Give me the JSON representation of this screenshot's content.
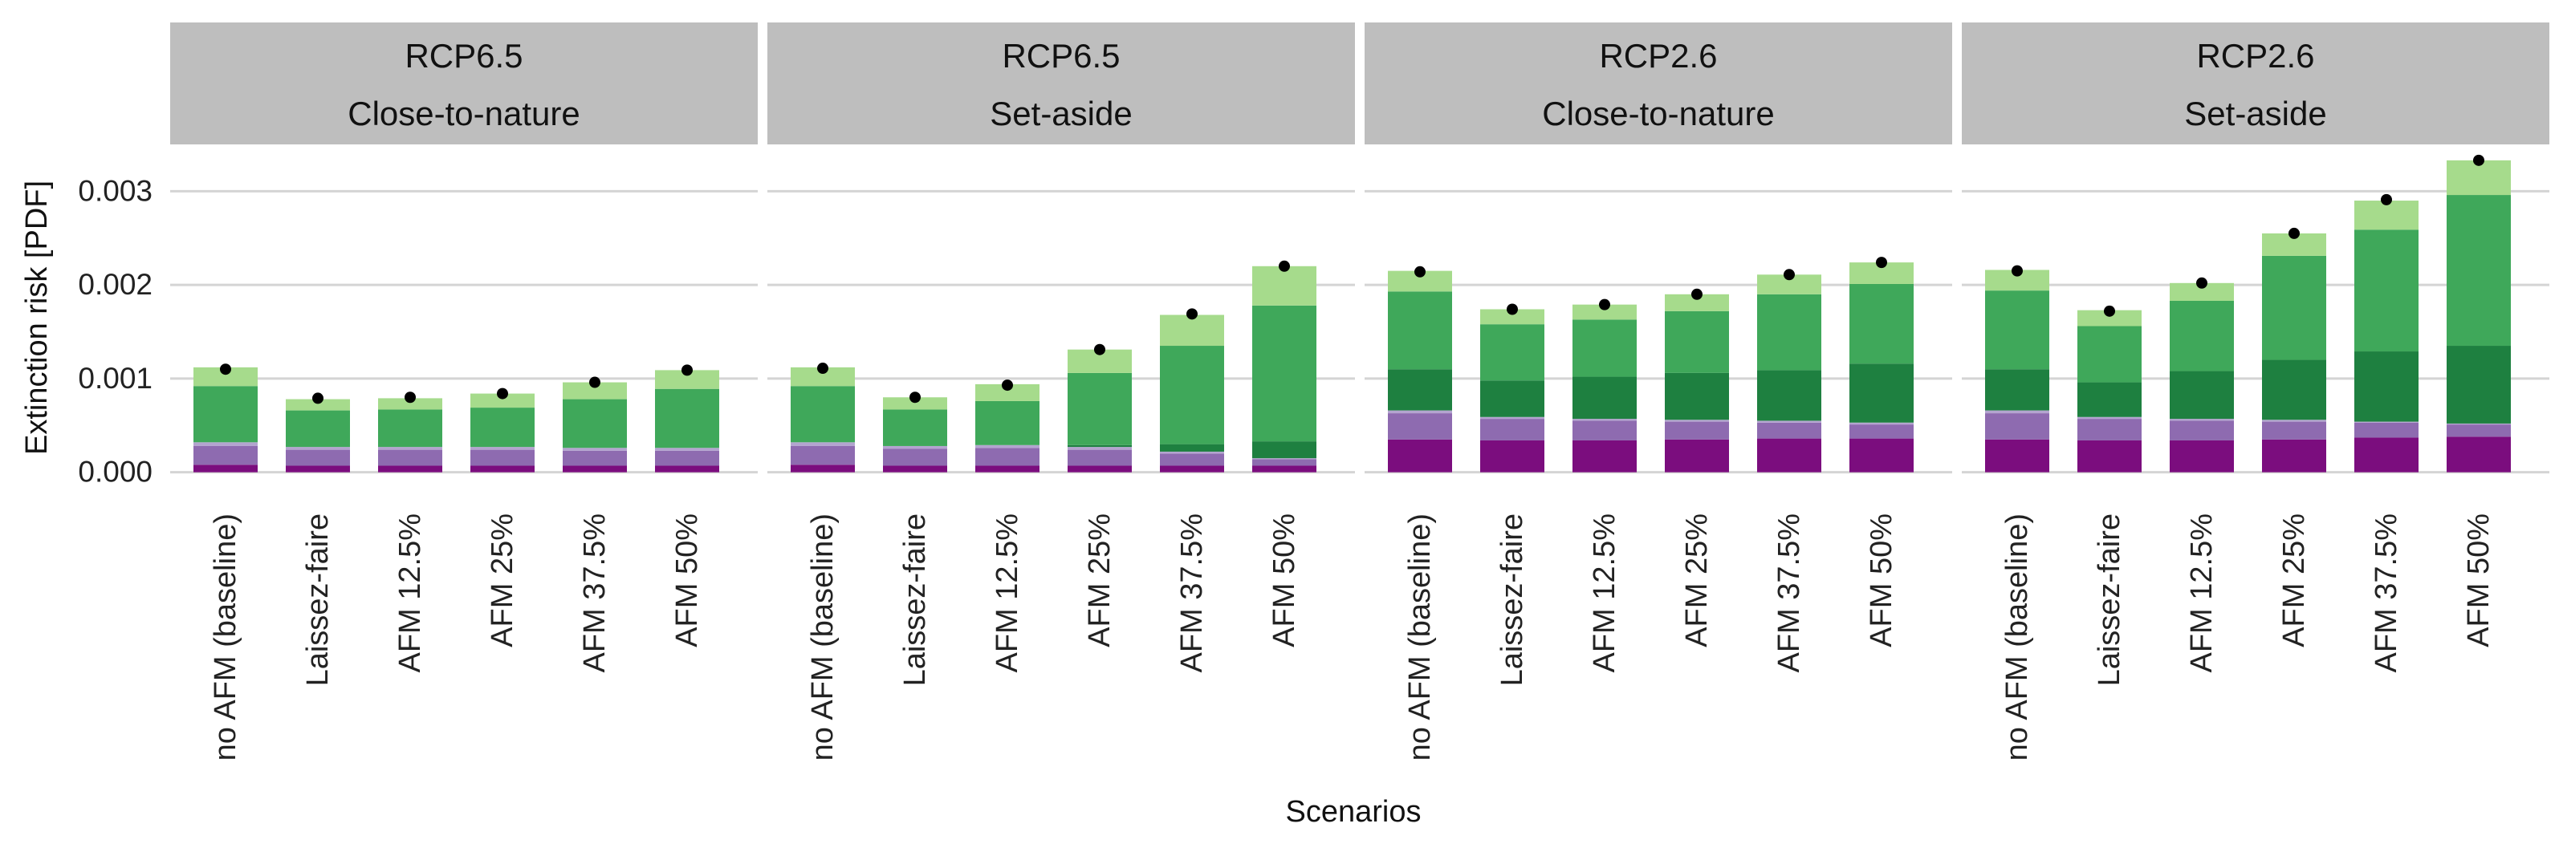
{
  "chart_data": {
    "type": "bar",
    "subtype": "stacked, faceted",
    "xlabel": "Scenarios",
    "ylabel": "Extinction risk [PDF]",
    "ylim": [
      -0.0002,
      0.0035
    ],
    "yticks": [
      0,
      0.001,
      0.002,
      0.003
    ],
    "ytick_labels": [
      "0.000",
      "0.001",
      "0.002",
      "0.003"
    ],
    "grid": "horizontal",
    "categories": [
      "no AFM (baseline)",
      "Laissez-faire",
      "AFM 12.5%",
      "AFM 25%",
      "AFM 37.5%",
      "AFM 50%"
    ],
    "segment_colors": [
      "#7B0D7E",
      "#8E6BB0",
      "#B3A4CF",
      "#1E8040",
      "#3FA85A",
      "#A6DB8C"
    ],
    "point_color": "#000000",
    "point_values_meaning": "total",
    "panels": [
      {
        "strip": [
          "RCP6.5",
          "Close-to-nature"
        ],
        "stacks": [
          [
            8e-05,
            0.0002,
            4e-05,
            0.0,
            0.0006,
            0.0002
          ],
          [
            7e-05,
            0.00017,
            3e-05,
            0.0,
            0.00039,
            0.00012
          ],
          [
            7e-05,
            0.00017,
            3e-05,
            0.0,
            0.0004,
            0.00012
          ],
          [
            7e-05,
            0.00017,
            3e-05,
            0.0,
            0.00042,
            0.00015
          ],
          [
            7e-05,
            0.00016,
            3e-05,
            0.0,
            0.00052,
            0.00018
          ],
          [
            7e-05,
            0.00016,
            3e-05,
            0.0,
            0.00063,
            0.0002
          ]
        ],
        "points": [
          0.0011,
          0.00079,
          0.0008,
          0.00084,
          0.00096,
          0.00109
        ]
      },
      {
        "strip": [
          "RCP6.5",
          "Set-aside"
        ],
        "stacks": [
          [
            8e-05,
            0.0002,
            4e-05,
            0.0,
            0.0006,
            0.0002
          ],
          [
            7e-05,
            0.00018,
            3e-05,
            0.0,
            0.00039,
            0.00013
          ],
          [
            7e-05,
            0.00019,
            3e-05,
            0.0,
            0.00047,
            0.00018
          ],
          [
            7e-05,
            0.00017,
            3e-05,
            2e-05,
            0.00077,
            0.00025
          ],
          [
            7e-05,
            0.00013,
            2e-05,
            8e-05,
            0.00105,
            0.00033
          ],
          [
            7e-05,
            7e-05,
            1e-05,
            0.00018,
            0.00145,
            0.00042
          ]
        ],
        "points": [
          0.00111,
          0.0008,
          0.00093,
          0.00131,
          0.00169,
          0.0022
        ]
      },
      {
        "strip": [
          "RCP2.6",
          "Close-to-nature"
        ],
        "stacks": [
          [
            0.00035,
            0.00028,
            3e-05,
            0.00044,
            0.00083,
            0.00022
          ],
          [
            0.00034,
            0.00023,
            2e-05,
            0.00039,
            0.0006,
            0.00016
          ],
          [
            0.00034,
            0.00021,
            2e-05,
            0.00045,
            0.00061,
            0.00016
          ],
          [
            0.00035,
            0.00019,
            2e-05,
            0.0005,
            0.00066,
            0.00018
          ],
          [
            0.00036,
            0.00017,
            2e-05,
            0.00054,
            0.00081,
            0.00021
          ],
          [
            0.00036,
            0.00015,
            2e-05,
            0.00063,
            0.00085,
            0.00023
          ]
        ],
        "points": [
          0.00214,
          0.00174,
          0.00179,
          0.0019,
          0.00211,
          0.00224
        ]
      },
      {
        "strip": [
          "RCP2.6",
          "Set-aside"
        ],
        "stacks": [
          [
            0.00035,
            0.00028,
            3e-05,
            0.00044,
            0.00084,
            0.00022
          ],
          [
            0.00034,
            0.00023,
            2e-05,
            0.00037,
            0.0006,
            0.00017
          ],
          [
            0.00034,
            0.00021,
            2e-05,
            0.00051,
            0.00075,
            0.00019
          ],
          [
            0.00035,
            0.00019,
            2e-05,
            0.00064,
            0.00111,
            0.00024
          ],
          [
            0.00037,
            0.00016,
            1e-05,
            0.00075,
            0.0013,
            0.00031
          ],
          [
            0.00038,
            0.00013,
            1e-05,
            0.00083,
            0.00161,
            0.00037
          ]
        ],
        "points": [
          0.00215,
          0.00172,
          0.00202,
          0.00255,
          0.00291,
          0.00333
        ]
      }
    ]
  }
}
